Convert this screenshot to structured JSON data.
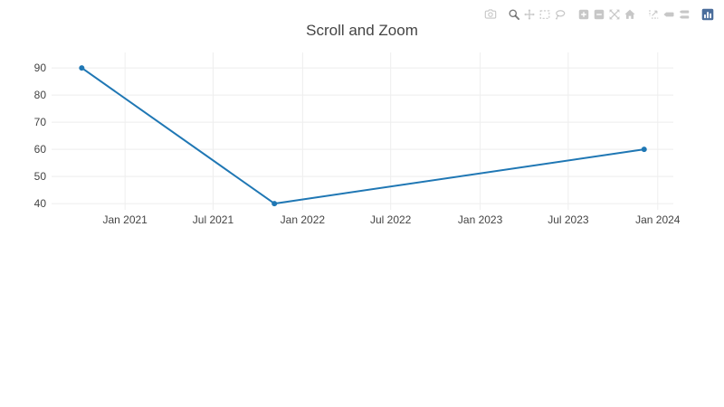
{
  "chart_data": {
    "type": "line",
    "title": "Scroll and Zoom",
    "x": [
      "2020-10-04",
      "2021-11-04",
      "2023-12-04"
    ],
    "y": [
      90,
      40,
      60
    ],
    "x_ticks": [
      {
        "value": "2021-01-01",
        "label": "Jan 2021"
      },
      {
        "value": "2021-07-01",
        "label": "Jul 2021"
      },
      {
        "value": "2022-01-01",
        "label": "Jan 2022"
      },
      {
        "value": "2022-07-01",
        "label": "Jul 2022"
      },
      {
        "value": "2023-01-01",
        "label": "Jan 2023"
      },
      {
        "value": "2023-07-01",
        "label": "Jul 2023"
      },
      {
        "value": "2024-01-01",
        "label": "Jan 2024"
      }
    ],
    "y_ticks": [
      {
        "value": 40,
        "label": "40"
      },
      {
        "value": 50,
        "label": "50"
      },
      {
        "value": 60,
        "label": "60"
      },
      {
        "value": 70,
        "label": "70"
      },
      {
        "value": 80,
        "label": "80"
      },
      {
        "value": 90,
        "label": "90"
      }
    ],
    "x_range": [
      "2020-08-03",
      "2024-02-02"
    ],
    "y_range": [
      37.7,
      95.7
    ],
    "grid": true,
    "legend": false,
    "xlabel": "",
    "ylabel": "",
    "colors": {
      "line": "#1f77b4",
      "marker": "#1f77b4",
      "grid": "#eeeeee",
      "tick_text": "#444444",
      "title_text": "#444444"
    },
    "line_width": 2,
    "marker_radius": 3
  },
  "modebar": {
    "idle_color": "rgba(68,68,68,0.3)",
    "active_color": "rgba(68,68,68,0.7)",
    "logo_color": "#4a6d9b",
    "groups": [
      {
        "buttons": [
          {
            "name": "download-png-button",
            "icon": "camera-icon",
            "active": false
          }
        ]
      },
      {
        "buttons": [
          {
            "name": "zoom-button",
            "icon": "zoom-icon",
            "active": true
          },
          {
            "name": "pan-button",
            "icon": "pan-icon",
            "active": false
          },
          {
            "name": "box-select-button",
            "icon": "box-select-icon",
            "active": false
          },
          {
            "name": "lasso-select-button",
            "icon": "lasso-select-icon",
            "active": false
          }
        ]
      },
      {
        "buttons": [
          {
            "name": "zoom-in-button",
            "icon": "zoom-in-icon",
            "active": false
          },
          {
            "name": "zoom-out-button",
            "icon": "zoom-out-icon",
            "active": false
          },
          {
            "name": "autoscale-button",
            "icon": "autoscale-icon",
            "active": false
          },
          {
            "name": "reset-axes-button",
            "icon": "home-icon",
            "active": false
          }
        ]
      },
      {
        "buttons": [
          {
            "name": "toggle-spikelines-button",
            "icon": "spikelines-icon",
            "active": false
          },
          {
            "name": "hover-closest-button",
            "icon": "hover-closest-icon",
            "active": false
          },
          {
            "name": "hover-compare-button",
            "icon": "hover-compare-icon",
            "active": false
          }
        ]
      },
      {
        "buttons": [
          {
            "name": "plotly-logo-button",
            "icon": "plotly-logo-icon",
            "active": false
          }
        ]
      }
    ]
  }
}
